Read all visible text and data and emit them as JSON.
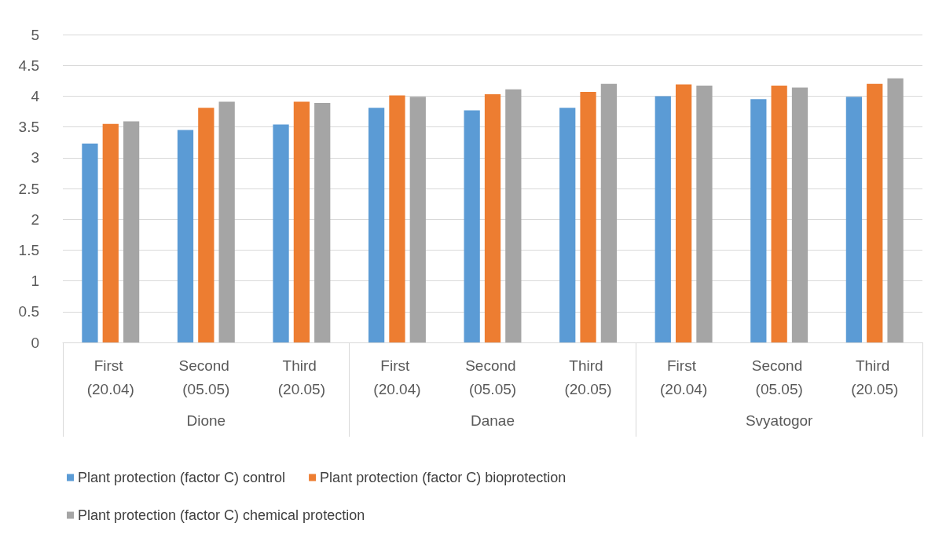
{
  "chart_data": {
    "type": "bar",
    "categories": [
      "First (20.04)",
      "Second (05.05)",
      "Third (20.05)",
      "First (20.04)",
      "Second (05.05)",
      "Third (20.05)",
      "First (20.04)",
      "Second (05.05)",
      "Third (20.05)"
    ],
    "annotations": [
      "Dione",
      "Danae",
      "Svyatogor"
    ],
    "series": [
      {
        "name": "Plant protection (factor C) control",
        "color": "#5b9bd5",
        "values": [
          3.23,
          3.45,
          3.54,
          3.81,
          3.77,
          3.81,
          4.0,
          3.95,
          3.99
        ]
      },
      {
        "name": "Plant protection (factor C) bioprotection",
        "color": "#ed7d31",
        "values": [
          3.55,
          3.81,
          3.91,
          4.01,
          4.03,
          4.07,
          4.19,
          4.17,
          4.2
        ]
      },
      {
        "name": "Plant protection (factor C) chemical protection",
        "color": "#a5a5a5",
        "values": [
          3.59,
          3.91,
          3.89,
          3.99,
          4.11,
          4.2,
          4.17,
          4.14,
          4.29
        ]
      }
    ],
    "ylim": [
      0,
      5
    ],
    "yticks": [
      0,
      0.5,
      1,
      1.5,
      2,
      2.5,
      3,
      3.5,
      4,
      4.5,
      5
    ],
    "grid": "y",
    "legend": "bottom"
  }
}
